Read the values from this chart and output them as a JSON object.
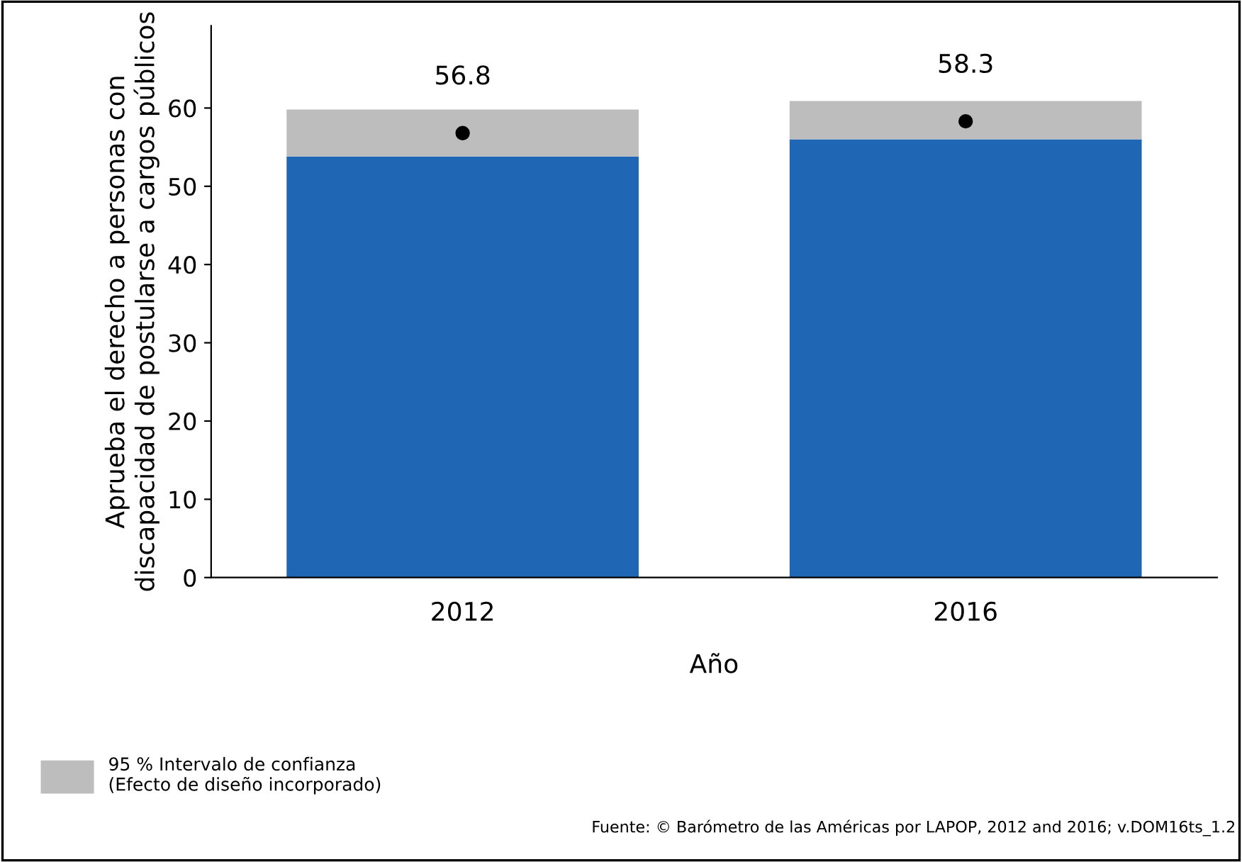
{
  "chart_data": {
    "type": "bar",
    "stacked": true,
    "categories": [
      "2012",
      "2016"
    ],
    "xlabel": "Año",
    "ylabel": "Aprueba el derecho a personas con discapacidad de postularse a cargos públicos",
    "series": [
      {
        "color": "#1f67b5",
        "values": [
          53.8,
          56.0
        ]
      },
      {
        "name": "95 % Intervalo de confianza\n(Efecto de diseño incorporado)",
        "color": "#bdbdbd",
        "values": [
          6.0,
          4.9
        ]
      },
      {
        "type": "scatter",
        "color": "#000000",
        "values": [
          56.8,
          58.3
        ],
        "value_labels": [
          "56.8",
          "58.3"
        ]
      }
    ],
    "ylim": [
      0,
      70.5
    ],
    "yticks": [
      0,
      10,
      20,
      30,
      40,
      50,
      60
    ],
    "grid": false,
    "legend": "bottom left",
    "marker": "circle",
    "annotations": [
      "Fuente: © Barómetro de las Américas por LAPOP, 2012 and 2016; v.DOM16ts_1.2"
    ]
  }
}
